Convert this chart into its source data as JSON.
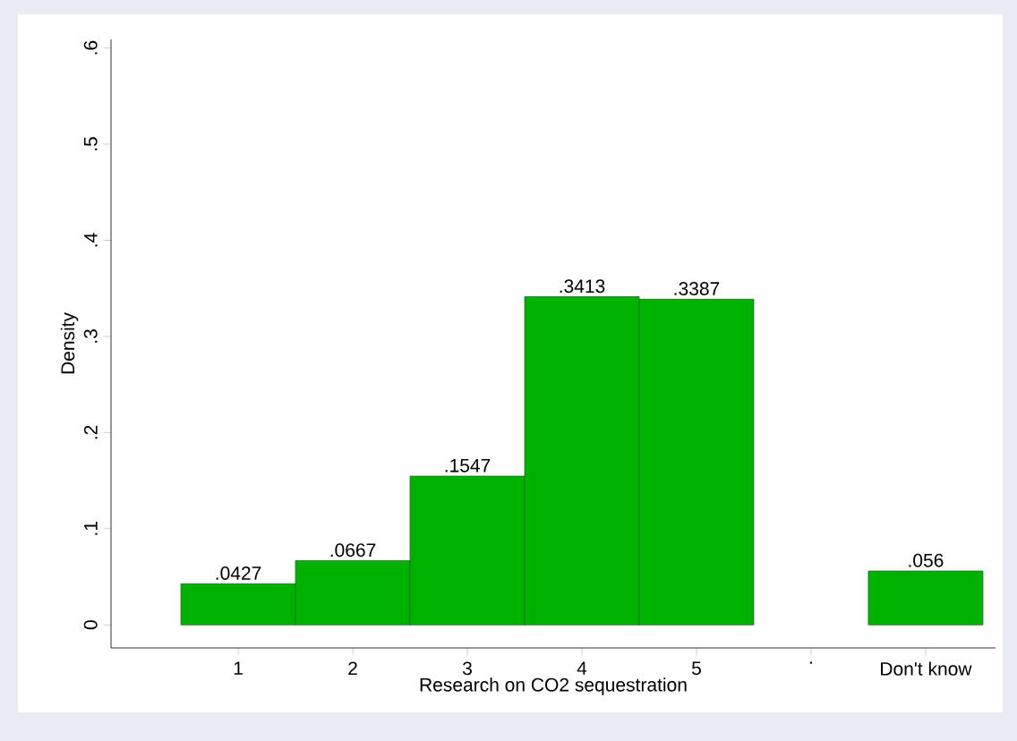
{
  "chart_data": {
    "type": "bar",
    "xlabel": "Research on CO2 sequestration",
    "ylabel": "Density",
    "categories": [
      "1",
      "2",
      "3",
      "4",
      "5",
      ".",
      "Don't know"
    ],
    "values": [
      0.0427,
      0.0667,
      0.1547,
      0.3413,
      0.3387,
      null,
      0.056
    ],
    "value_labels": [
      ".0427",
      ".0667",
      ".1547",
      ".3413",
      ".3387",
      null,
      ".056"
    ],
    "color": "#00b200",
    "ylim": [
      -0.024,
      0.609
    ],
    "yticks": [
      0,
      {
        "value": 0.1,
        "label": ".1"
      },
      {
        "value": 0.2,
        "label": ".2"
      },
      {
        "value": 0.3,
        "label": ".3"
      },
      {
        "value": 0.4,
        "label": ".4"
      },
      {
        "value": 0.5,
        "label": ".5"
      },
      {
        "value": 0.6,
        "label": ".6"
      }
    ],
    "grid": false
  }
}
